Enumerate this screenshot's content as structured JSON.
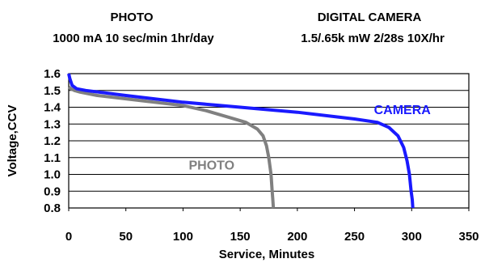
{
  "chart_data": {
    "type": "line",
    "headers": [
      {
        "title": "PHOTO",
        "subtitle": "1000 mA 10 sec/min 1hr/day"
      },
      {
        "title": "DIGITAL CAMERA",
        "subtitle": "1.5/.65k mW 2/28s 10X/hr"
      }
    ],
    "xlabel": "Service, Minutes",
    "ylabel": "Voltage,CCV",
    "xlim": [
      0,
      350
    ],
    "ylim": [
      0.8,
      1.6
    ],
    "xticks": [
      "0",
      "50",
      "100",
      "150",
      "200",
      "250",
      "300",
      "350"
    ],
    "yticks": [
      "0.8",
      "0.9",
      "1.0",
      "1.1",
      "1.2",
      "1.3",
      "1.4",
      "1.5",
      "1.6"
    ],
    "grid": "horizontal",
    "series": [
      {
        "name": "PHOTO",
        "color": "#808080",
        "label_at": [
          105,
          1.03
        ],
        "points": [
          [
            0,
            1.52
          ],
          [
            2,
            1.51
          ],
          [
            5,
            1.5
          ],
          [
            10,
            1.49
          ],
          [
            25,
            1.47
          ],
          [
            50,
            1.45
          ],
          [
            75,
            1.43
          ],
          [
            100,
            1.41
          ],
          [
            120,
            1.38
          ],
          [
            140,
            1.34
          ],
          [
            155,
            1.31
          ],
          [
            165,
            1.27
          ],
          [
            170,
            1.23
          ],
          [
            173,
            1.17
          ],
          [
            175,
            1.1
          ],
          [
            177,
            1.0
          ],
          [
            178,
            0.9
          ],
          [
            178.5,
            0.85
          ],
          [
            179,
            0.8
          ]
        ]
      },
      {
        "name": "CAMERA",
        "color": "#1a1aff",
        "label_at": [
          267,
          1.36
        ],
        "points": [
          [
            0,
            1.6
          ],
          [
            1,
            1.57
          ],
          [
            3,
            1.53
          ],
          [
            7,
            1.51
          ],
          [
            15,
            1.5
          ],
          [
            50,
            1.47
          ],
          [
            100,
            1.43
          ],
          [
            150,
            1.4
          ],
          [
            200,
            1.37
          ],
          [
            250,
            1.33
          ],
          [
            270,
            1.31
          ],
          [
            280,
            1.28
          ],
          [
            288,
            1.23
          ],
          [
            293,
            1.16
          ],
          [
            296,
            1.08
          ],
          [
            298,
            1.0
          ],
          [
            299.5,
            0.9
          ],
          [
            300.5,
            0.85
          ],
          [
            301,
            0.8
          ]
        ]
      }
    ]
  }
}
